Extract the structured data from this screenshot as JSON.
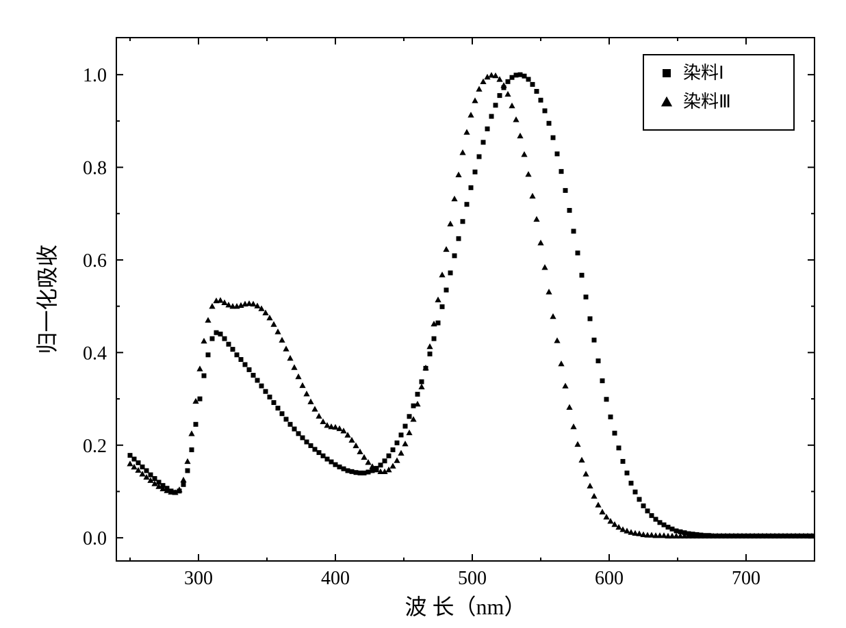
{
  "chart": {
    "type": "scatter",
    "background_color": "#ffffff",
    "axis_border_color": "#000000",
    "axis_border_width": 2,
    "tick_length_major": 10,
    "tick_length_minor": 5,
    "tick_label_fontsize": 28,
    "axis_title_fontsize": 32,
    "xlabel": "波 长（nm）",
    "ylabel": "归一化吸收",
    "xlim": [
      240,
      750
    ],
    "ylim": [
      -0.05,
      1.08
    ],
    "xticks_major": [
      300,
      400,
      500,
      600,
      700
    ],
    "xticks_minor": [
      250,
      350,
      450,
      550,
      650,
      750
    ],
    "yticks_major": [
      0.0,
      0.2,
      0.4,
      0.6,
      0.8,
      1.0
    ],
    "yticks_minor": [
      0.1,
      0.3,
      0.5,
      0.7,
      0.9
    ],
    "ytick_labels": [
      "0.0",
      "0.2",
      "0.4",
      "0.6",
      "0.8",
      "1.0"
    ],
    "legend": {
      "border_color": "#000000",
      "border_width": 2,
      "fontsize": 26,
      "items": [
        {
          "marker": "square",
          "color": "#000000",
          "label": "染料Ⅰ"
        },
        {
          "marker": "triangle",
          "color": "#000000",
          "label": "染料Ⅲ"
        }
      ]
    },
    "series": [
      {
        "name": "dye1",
        "marker": "square",
        "marker_size": 7,
        "color": "#000000",
        "x_start": 250,
        "x_step": 3,
        "y": [
          0.178,
          0.17,
          0.162,
          0.153,
          0.145,
          0.136,
          0.128,
          0.12,
          0.113,
          0.107,
          0.101,
          0.098,
          0.101,
          0.115,
          0.145,
          0.19,
          0.245,
          0.3,
          0.35,
          0.395,
          0.43,
          0.443,
          0.44,
          0.43,
          0.418,
          0.407,
          0.395,
          0.385,
          0.374,
          0.363,
          0.351,
          0.34,
          0.328,
          0.316,
          0.304,
          0.292,
          0.28,
          0.268,
          0.256,
          0.245,
          0.235,
          0.225,
          0.216,
          0.207,
          0.199,
          0.191,
          0.184,
          0.177,
          0.17,
          0.164,
          0.158,
          0.153,
          0.149,
          0.145,
          0.143,
          0.141,
          0.14,
          0.14,
          0.142,
          0.145,
          0.15,
          0.157,
          0.166,
          0.177,
          0.19,
          0.205,
          0.222,
          0.241,
          0.262,
          0.285,
          0.31,
          0.337,
          0.366,
          0.397,
          0.43,
          0.464,
          0.499,
          0.535,
          0.572,
          0.609,
          0.646,
          0.683,
          0.72,
          0.756,
          0.79,
          0.823,
          0.854,
          0.883,
          0.91,
          0.934,
          0.955,
          0.972,
          0.985,
          0.994,
          0.999,
          1.0,
          0.997,
          0.99,
          0.979,
          0.964,
          0.945,
          0.922,
          0.895,
          0.864,
          0.829,
          0.791,
          0.75,
          0.707,
          0.662,
          0.615,
          0.567,
          0.52,
          0.473,
          0.427,
          0.382,
          0.339,
          0.299,
          0.261,
          0.226,
          0.194,
          0.165,
          0.14,
          0.118,
          0.099,
          0.083,
          0.069,
          0.058,
          0.048,
          0.04,
          0.033,
          0.028,
          0.023,
          0.019,
          0.015,
          0.013,
          0.011,
          0.009,
          0.008,
          0.007,
          0.006,
          0.005,
          0.005,
          0.004,
          0.004,
          0.004,
          0.004,
          0.004,
          0.004,
          0.004,
          0.004,
          0.004,
          0.004,
          0.004,
          0.004,
          0.004,
          0.004,
          0.004,
          0.004,
          0.004,
          0.004,
          0.004,
          0.004,
          0.004,
          0.004,
          0.004,
          0.004,
          0.004
        ]
      },
      {
        "name": "dye3",
        "marker": "triangle",
        "marker_size": 8,
        "color": "#000000",
        "x_start": 250,
        "x_step": 3,
        "y": [
          0.16,
          0.153,
          0.146,
          0.138,
          0.131,
          0.124,
          0.117,
          0.111,
          0.106,
          0.102,
          0.099,
          0.098,
          0.104,
          0.125,
          0.165,
          0.225,
          0.295,
          0.365,
          0.425,
          0.47,
          0.5,
          0.512,
          0.513,
          0.508,
          0.503,
          0.5,
          0.5,
          0.502,
          0.505,
          0.506,
          0.505,
          0.501,
          0.495,
          0.486,
          0.475,
          0.461,
          0.445,
          0.427,
          0.408,
          0.388,
          0.368,
          0.348,
          0.329,
          0.311,
          0.294,
          0.278,
          0.263,
          0.251,
          0.243,
          0.24,
          0.239,
          0.236,
          0.231,
          0.222,
          0.211,
          0.199,
          0.186,
          0.174,
          0.163,
          0.154,
          0.147,
          0.143,
          0.143,
          0.147,
          0.155,
          0.167,
          0.183,
          0.203,
          0.227,
          0.256,
          0.289,
          0.326,
          0.367,
          0.413,
          0.462,
          0.514,
          0.568,
          0.623,
          0.678,
          0.732,
          0.784,
          0.832,
          0.876,
          0.913,
          0.944,
          0.969,
          0.985,
          0.995,
          0.999,
          0.998,
          0.99,
          0.977,
          0.958,
          0.933,
          0.903,
          0.868,
          0.828,
          0.785,
          0.738,
          0.688,
          0.637,
          0.584,
          0.531,
          0.478,
          0.426,
          0.376,
          0.328,
          0.282,
          0.24,
          0.202,
          0.168,
          0.138,
          0.112,
          0.09,
          0.071,
          0.056,
          0.045,
          0.036,
          0.029,
          0.023,
          0.018,
          0.015,
          0.012,
          0.01,
          0.009,
          0.007,
          0.006,
          0.006,
          0.005,
          0.005,
          0.005,
          0.004,
          0.004,
          0.004,
          0.004,
          0.004,
          0.004,
          0.004,
          0.004,
          0.004,
          0.004,
          0.004,
          0.004,
          0.004,
          0.004,
          0.004,
          0.004,
          0.004,
          0.004,
          0.004,
          0.004,
          0.004,
          0.004,
          0.004,
          0.004,
          0.004,
          0.004,
          0.004,
          0.004,
          0.004,
          0.004,
          0.004,
          0.004,
          0.004,
          0.004,
          0.004,
          0.004
        ]
      }
    ]
  }
}
